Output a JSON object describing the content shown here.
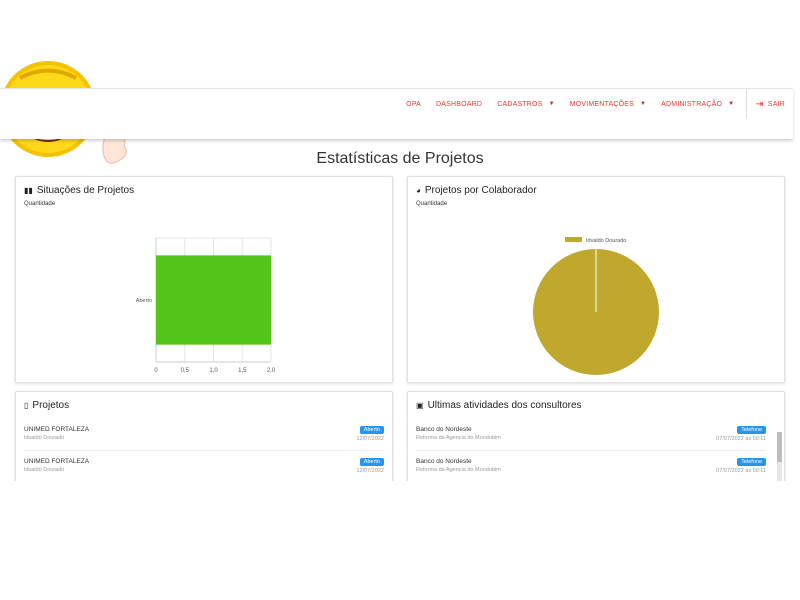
{
  "nav": {
    "items": [
      {
        "label": "OPA",
        "has_caret": false
      },
      {
        "label": "DASHBOARD",
        "has_caret": false
      },
      {
        "label": "CADASTROS",
        "has_caret": true
      },
      {
        "label": "MOVIMENTAÇÕES",
        "has_caret": true
      },
      {
        "label": "ADMINISTRAÇÃO",
        "has_caret": true
      }
    ],
    "logout_label": "SAIR",
    "color": "#e53935"
  },
  "page_title": "Estatísticas de Projetos",
  "situacoes": {
    "title": "Situações de Projetos",
    "subtitle": "Quantidade",
    "icon": "bar-chart-icon"
  },
  "colaborador": {
    "title": "Projetos por Colaborador",
    "subtitle": "Quantidade",
    "icon": "pie-chart-icon"
  },
  "chart_data": [
    {
      "type": "bar",
      "orientation": "horizontal",
      "categories": [
        "Aberto"
      ],
      "values": [
        2
      ],
      "xlim": [
        0,
        2.0
      ],
      "x_ticks": [
        "0",
        "0,5",
        "1,0",
        "1,5",
        "2,0"
      ],
      "color": "#52c41a",
      "grid": true
    },
    {
      "type": "pie",
      "labels": [
        "Idvaldo Dourado"
      ],
      "values": [
        1
      ],
      "color": "#c0a72e",
      "legend": "top"
    }
  ],
  "projetos": {
    "title": "Projetos",
    "icon": "clipboard-icon",
    "items": [
      {
        "name": "UNIMED FORTALEZA",
        "person": "Idvaldo Dourado",
        "status": "Aberto",
        "date": "12/07/2022"
      },
      {
        "name": "UNIMED FORTALEZA",
        "person": "Idvaldo Dourado",
        "status": "Aberto",
        "date": "12/07/2022"
      }
    ]
  },
  "atividades": {
    "title": "Ultimas atividades dos consultores",
    "icon": "briefcase-icon",
    "items": [
      {
        "client": "Banco do Nordeste",
        "desc": "Reforma da Agencia do Mondubim",
        "type": "Telefone",
        "datetime": "07/07/2022 as 09:11"
      },
      {
        "client": "Banco do Nordeste",
        "desc": "Reforma da Agencia do Mondubim",
        "type": "Telefone",
        "datetime": "07/07/2022 as 09:11"
      }
    ]
  },
  "badge_color": "#2196f3"
}
